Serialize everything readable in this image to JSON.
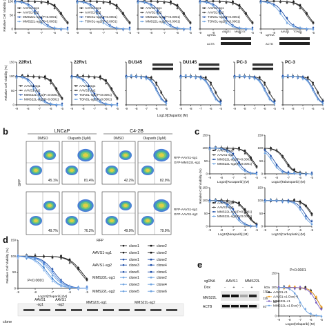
{
  "panel_letters": {
    "b": "b",
    "c": "c",
    "d": "d",
    "e": "e"
  },
  "common": {
    "y_axis_label": "Relative Cell Viability (%)",
    "olaparib_axis": "Log10[Olaparib] (M)",
    "x_ticks": [
      "-9",
      "-8",
      "-7",
      "-6",
      "-5"
    ],
    "y_ticks": [
      "0",
      "50",
      "100",
      "150"
    ]
  },
  "row1_labels": [
    "AAVS1-sg1",
    "AAVS1-sg2",
    "TONSL-sg1(P<0.0001)",
    "TONSL-sg2(P<0.0001)"
  ],
  "row1_labels_mms": [
    "AAVS1-sg1",
    "AAVS1-sg2",
    "MMS22L-sg1(P<0.0001)",
    "MMS22L-sg2(P<0.0001)"
  ],
  "row2_titles": [
    "22Rv1",
    "22Rv1",
    "DU145",
    "DU145",
    "PC-3",
    "PC-3"
  ],
  "row2_labels_mms": [
    "AAVS1-sg1",
    "AAVS1-sg2",
    "MMS22L-sg1(P=0.0001)",
    "MMS22L-sg2(P=0.0001)"
  ],
  "row2_labels_tonsl": [
    "AAVS1-sg1",
    "AAVS1-sg2",
    "TONSL-sg1(P<0.0001)",
    "TONSL-sg2(P=0.0001)"
  ],
  "blot_labels": {
    "sgrna": "sgRNA",
    "aavs1": "AAVS1",
    "mms22l": "MMS22L",
    "tonsl": "TONSL",
    "actb": "ACTB"
  },
  "panel_b": {
    "lncap": "LNCaP",
    "c42b": "C4-2B",
    "dmso": "DMSO",
    "olaparib": "Olaparib (3µM)",
    "gfp": "GFP",
    "rfp": "RFP",
    "pcts_top": [
      "45.1%",
      "81.4%",
      "42.2%",
      "82.9%"
    ],
    "pcts_bottom": [
      "49.7%",
      "76.2%",
      "49.9%",
      "79.9%"
    ],
    "legend_top": [
      "RFP-AAVS1-sg1",
      "GFP-MMS22L-sg1"
    ],
    "legend_bottom": [
      "RFP-AAVS1-sg1",
      "GFP-AAVS1-sg2"
    ]
  },
  "panel_c": {
    "legend": [
      "AAVS1-sg1",
      "AAVS1-sg2",
      "MMS22L-sg1(P<0.0001)",
      "MMS22L-sg2(P<0.0001)"
    ],
    "x_labels": [
      "Log10[Rucaparib] (M)",
      "Log10[Talazoparib] (M)",
      "Log10[Niraparib] (M)",
      "Log10[Carboplatin] (M)"
    ]
  },
  "panel_d": {
    "p_value": "P<0.0001",
    "groups": [
      "AAVS1-sg1",
      "AAVS1-sg2",
      "MMS22L-sg1",
      "MMS22L-sg2"
    ],
    "clones_left": [
      "clone1",
      "clone1",
      "clone1",
      "clone3",
      "clone5",
      "clone1",
      "clone3",
      "clone5"
    ],
    "clones_right": [
      "clone2",
      "clone2",
      "clone2",
      "clone4",
      "clone6",
      "clone2",
      "clone4",
      "clone6"
    ],
    "bottom_clone": "clone",
    "bottom_groups": [
      "AAVS1\n-sg1",
      "AAVS1\n-sg2",
      "MMS22L-sg1",
      "MMS22L-sg2"
    ]
  },
  "panel_e": {
    "sgrna": "sgRNA",
    "aavs1": "AAVS1",
    "mms22l": "MMS22L",
    "dox": "Dox",
    "mms22l_band": "MMS22L",
    "actb": "ACTB",
    "kda": "kDa",
    "kda_vals": [
      "130",
      "115",
      "40"
    ],
    "p_value": "P<0.0001",
    "legend": [
      "AAVS1-c1",
      "AAVS1-c1 Dox(+)",
      "MMS22L-c1",
      "MMS22L-c1 Dox(+)"
    ],
    "x_label": "Log10[Olaparib] (M)"
  },
  "colors": {
    "black": "#111111",
    "blue_dark": "#1f4fa8",
    "blue_light": "#6fa3e0",
    "orange": "#f0a020",
    "purple": "#7a5fc0"
  }
}
